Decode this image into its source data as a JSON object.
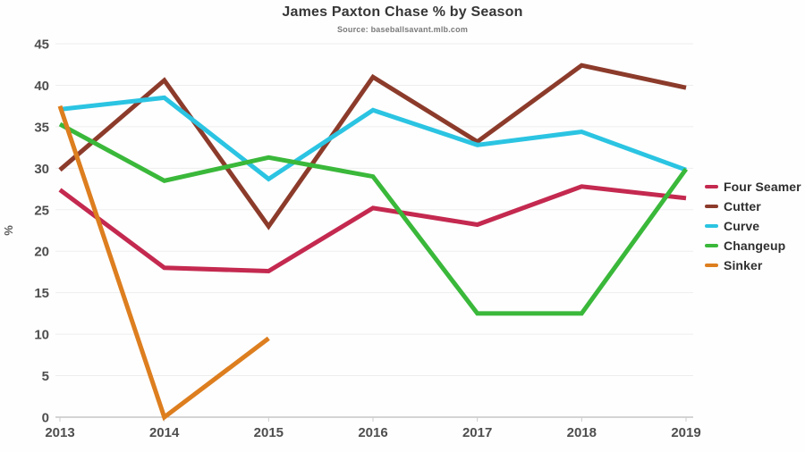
{
  "header": {
    "title": "James Paxton Chase % by Season",
    "subtitle": "Source: baseballsavant.mlb.com"
  },
  "chart_data": {
    "type": "line",
    "title": "James Paxton Chase % by Season",
    "subtitle": "Source: baseballsavant.mlb.com",
    "x": [
      2013,
      2014,
      2015,
      2016,
      2017,
      2018,
      2019
    ],
    "xlabel": "",
    "ylabel": "%",
    "ylim": [
      0,
      45
    ],
    "ytick_step": 5,
    "grid": true,
    "legend_position": "right",
    "series": [
      {
        "name": "Four Seamer",
        "color": "#c4294f",
        "values": [
          27.4,
          18.0,
          17.6,
          25.2,
          23.2,
          27.8,
          26.4
        ]
      },
      {
        "name": "Cutter",
        "color": "#8c3b2b",
        "values": [
          29.8,
          40.6,
          23.0,
          41.0,
          33.2,
          42.4,
          39.7
        ]
      },
      {
        "name": "Curve",
        "color": "#2bc4e2",
        "values": [
          37.1,
          38.5,
          28.7,
          37.0,
          32.8,
          34.4,
          29.8
        ]
      },
      {
        "name": "Changeup",
        "color": "#3ab83a",
        "values": [
          35.3,
          28.5,
          31.3,
          29.0,
          12.5,
          12.5,
          29.9
        ]
      },
      {
        "name": "Sinker",
        "color": "#dd7e1f",
        "values": [
          37.5,
          0.0,
          9.5,
          null,
          null,
          null,
          null
        ]
      }
    ],
    "style": {
      "grid_color": "#ededed",
      "axis_color": "#ababab",
      "tick_color": "#cccccc",
      "tick_label_color": "#4e4e4e",
      "line_width": 5
    }
  }
}
